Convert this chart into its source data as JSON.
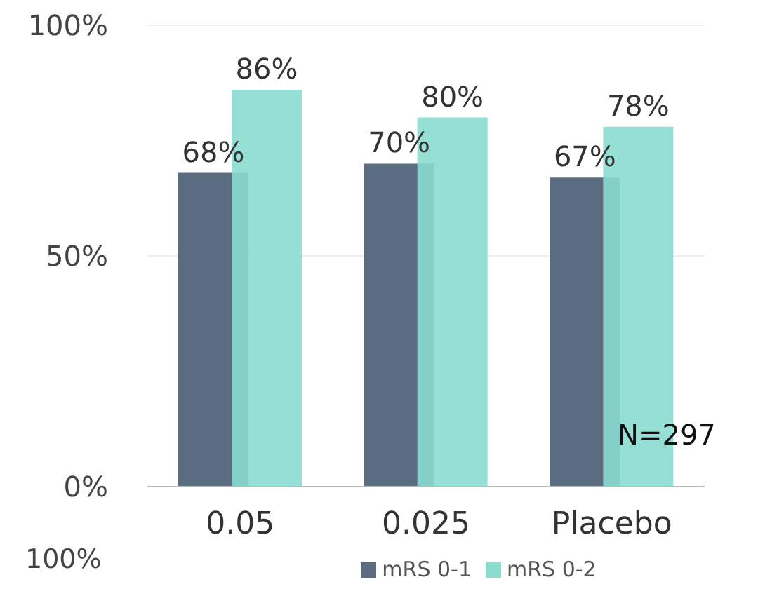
{
  "chart_data": {
    "type": "bar",
    "categories": [
      "0.05",
      "0.025",
      "Placebo"
    ],
    "series": [
      {
        "name": "mRS 0-1",
        "color": "#5b6b80",
        "values": [
          68,
          70,
          67
        ],
        "value_labels": [
          "68%",
          "70%",
          "67%"
        ]
      },
      {
        "name": "mRS 0-2",
        "color": "#8adccf",
        "values": [
          86,
          80,
          78
        ],
        "value_labels": [
          "86%",
          "80%",
          "78%"
        ]
      }
    ],
    "ylim": [
      0,
      100
    ],
    "yticks": [
      {
        "value": 0,
        "label": "0%"
      },
      {
        "value": 50,
        "label": "50%"
      },
      {
        "value": 100,
        "label": "100%"
      }
    ],
    "grid": "y",
    "legend": "bottom",
    "annotations": [
      "N=297",
      "100%"
    ]
  }
}
